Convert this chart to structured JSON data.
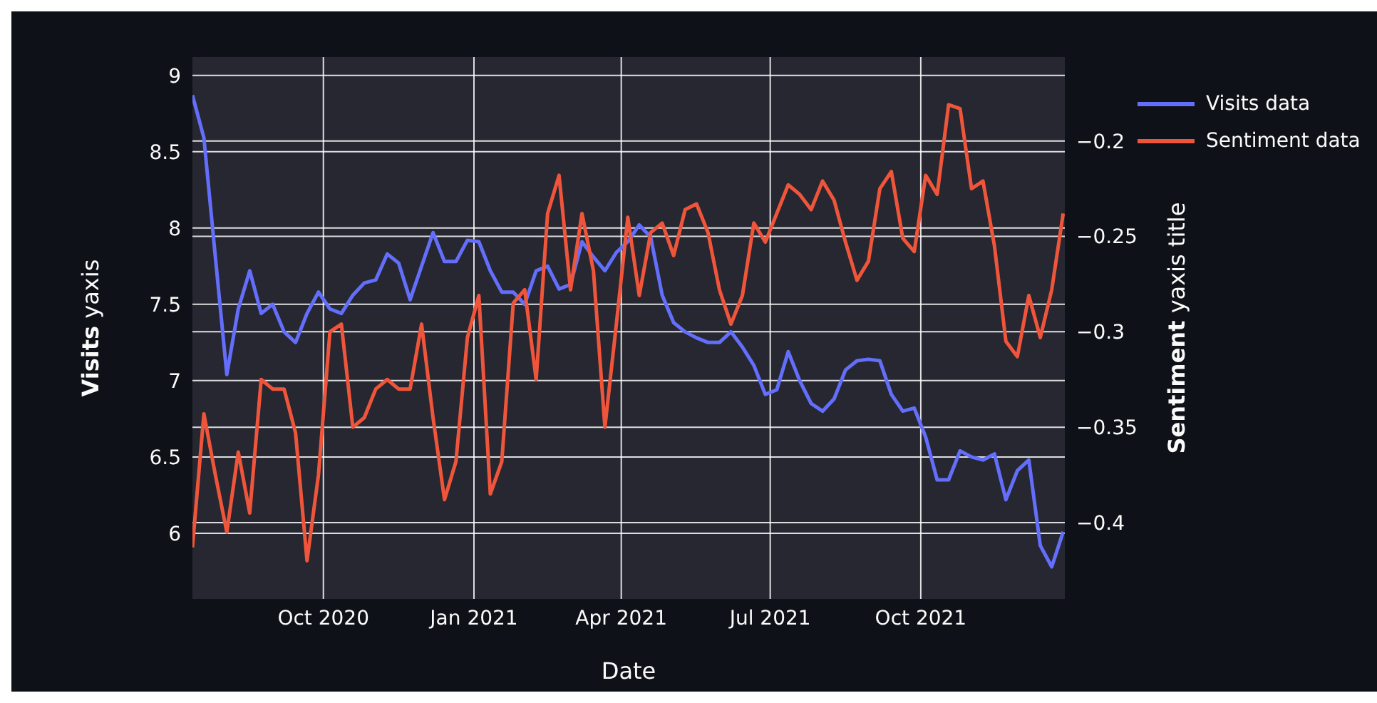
{
  "chart_data": {
    "type": "line",
    "xlabel": "Date",
    "ylabel": "Visits yaxis",
    "y2label": "Sentiment yaxis title",
    "x": [
      "2020-07-13",
      "2020-07-20",
      "2020-07-27",
      "2020-08-03",
      "2020-08-10",
      "2020-08-17",
      "2020-08-24",
      "2020-08-31",
      "2020-09-07",
      "2020-09-14",
      "2020-09-21",
      "2020-09-28",
      "2020-10-05",
      "2020-10-12",
      "2020-10-19",
      "2020-10-26",
      "2020-11-02",
      "2020-11-09",
      "2020-11-16",
      "2020-11-23",
      "2020-11-30",
      "2020-12-07",
      "2020-12-14",
      "2020-12-21",
      "2020-12-28",
      "2021-01-04",
      "2021-01-11",
      "2021-01-18",
      "2021-01-25",
      "2021-02-01",
      "2021-02-08",
      "2021-02-15",
      "2021-02-22",
      "2021-03-01",
      "2021-03-08",
      "2021-03-15",
      "2021-03-22",
      "2021-03-29",
      "2021-04-05",
      "2021-04-12",
      "2021-04-19",
      "2021-04-26",
      "2021-05-03",
      "2021-05-10",
      "2021-05-17",
      "2021-05-24",
      "2021-05-31",
      "2021-06-07",
      "2021-06-14",
      "2021-06-21",
      "2021-06-28",
      "2021-07-05",
      "2021-07-12",
      "2021-07-19",
      "2021-07-26",
      "2021-08-02",
      "2021-08-09",
      "2021-08-16",
      "2021-08-23",
      "2021-08-30",
      "2021-09-06",
      "2021-09-13",
      "2021-09-20",
      "2021-09-27",
      "2021-10-04",
      "2021-10-11",
      "2021-10-18",
      "2021-10-25",
      "2021-11-01",
      "2021-11-08",
      "2021-11-15",
      "2021-11-22",
      "2021-11-29",
      "2021-12-06",
      "2021-12-13",
      "2021-12-20",
      "2021-12-27"
    ],
    "series": [
      {
        "name": "Visits data",
        "color": "#636efa",
        "values": [
          8.87,
          8.59,
          7.81,
          7.04,
          7.47,
          7.72,
          7.44,
          7.5,
          7.32,
          7.25,
          7.44,
          7.58,
          7.47,
          7.44,
          7.56,
          7.64,
          7.66,
          7.83,
          7.77,
          7.53,
          7.75,
          7.97,
          7.78,
          7.78,
          7.92,
          7.91,
          7.72,
          7.58,
          7.58,
          7.5,
          7.72,
          7.75,
          7.6,
          7.63,
          7.91,
          7.81,
          7.72,
          7.84,
          7.91,
          8.02,
          7.94,
          7.56,
          7.38,
          7.32,
          7.28,
          7.25,
          7.25,
          7.32,
          7.22,
          7.1,
          6.91,
          6.94,
          7.19,
          7.0,
          6.85,
          6.8,
          6.88,
          7.07,
          7.13,
          7.14,
          7.13,
          6.91,
          6.8,
          6.82,
          6.63,
          6.35,
          6.35,
          6.54,
          6.5,
          6.48,
          6.52,
          6.22,
          6.41,
          6.48,
          5.92,
          5.78,
          6.01
        ]
      },
      {
        "name": "Sentiment data",
        "color": "#ef553b",
        "axis": "y2",
        "values": [
          -0.413,
          -0.343,
          -0.375,
          -0.405,
          -0.363,
          -0.395,
          -0.325,
          -0.33,
          -0.33,
          -0.353,
          -0.42,
          -0.375,
          -0.3,
          -0.296,
          -0.35,
          -0.345,
          -0.33,
          -0.325,
          -0.33,
          -0.33,
          -0.296,
          -0.345,
          -0.388,
          -0.368,
          -0.303,
          -0.281,
          -0.385,
          -0.368,
          -0.285,
          -0.278,
          -0.325,
          -0.238,
          -0.218,
          -0.278,
          -0.238,
          -0.268,
          -0.35,
          -0.296,
          -0.24,
          -0.281,
          -0.248,
          -0.243,
          -0.26,
          -0.236,
          -0.233,
          -0.248,
          -0.278,
          -0.296,
          -0.281,
          -0.243,
          -0.253,
          -0.238,
          -0.223,
          -0.228,
          -0.236,
          -0.221,
          -0.231,
          -0.253,
          -0.273,
          -0.263,
          -0.225,
          -0.216,
          -0.251,
          -0.258,
          -0.218,
          -0.228,
          -0.181,
          -0.183,
          -0.225,
          -0.221,
          -0.255,
          -0.305,
          -0.313,
          -0.281,
          -0.303,
          -0.278,
          -0.238
        ]
      }
    ],
    "xlim": [
      "2020-07-13",
      "2021-12-28"
    ],
    "xticks": [
      {
        "value": "2020-10-01",
        "label": "Oct 2020"
      },
      {
        "value": "2021-01-01",
        "label": "Jan 2021"
      },
      {
        "value": "2021-04-01",
        "label": "Apr 2021"
      },
      {
        "value": "2021-07-01",
        "label": "Jul 2021"
      },
      {
        "value": "2021-10-01",
        "label": "Oct 2021"
      }
    ],
    "ylim": [
      5.57,
      9.12
    ],
    "yticks": [
      6,
      6.5,
      7,
      7.5,
      8,
      8.5,
      9
    ],
    "y2lim": [
      -0.44,
      -0.156
    ],
    "y2ticks": [
      {
        "value": -0.4,
        "label": "−0.4"
      },
      {
        "value": -0.35,
        "label": "−0.35"
      },
      {
        "value": -0.3,
        "label": "−0.3"
      },
      {
        "value": -0.25,
        "label": "−0.25"
      },
      {
        "value": -0.2,
        "label": "−0.2"
      }
    ],
    "grid": true,
    "legend": "top right"
  }
}
